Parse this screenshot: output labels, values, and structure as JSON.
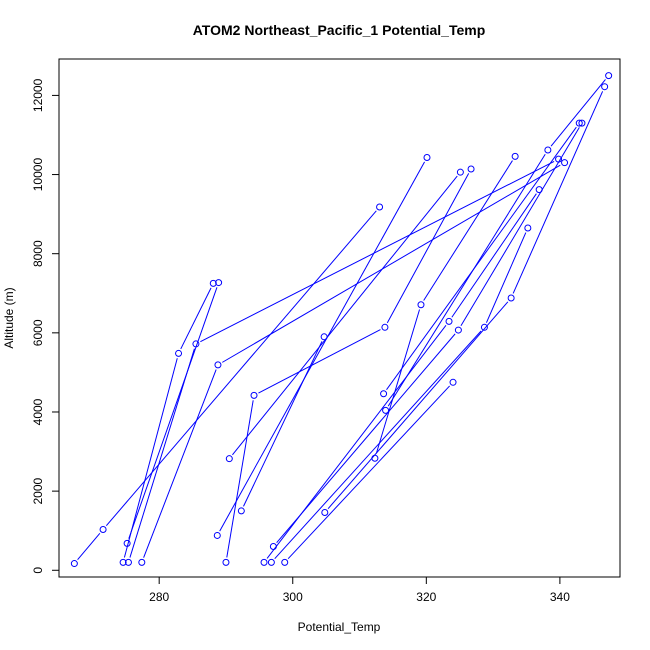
{
  "chart_data": {
    "type": "scatter",
    "title": "ATOM2 Northeast_Pacific_1 Potential_Temp",
    "xlabel": "Potential_Temp",
    "ylabel": "Altitude (m)",
    "xlim": [
      265,
      349
    ],
    "ylim": [
      -170,
      12920
    ],
    "x_ticks": [
      280,
      300,
      320,
      340
    ],
    "y_ticks": [
      0,
      2000,
      4000,
      6000,
      8000,
      10000,
      12000
    ],
    "series_color": "#0000ff",
    "grid": false,
    "legend": "none",
    "series": [
      {
        "name": "",
        "points": [
          [
            267.3,
            170
          ],
          [
            271.6,
            1030
          ],
          [
            313.0,
            9180
          ]
        ]
      },
      {
        "name": "",
        "points": [
          [
            274.6,
            200
          ],
          [
            282.9,
            5480
          ],
          [
            288.1,
            7250
          ]
        ]
      },
      {
        "name": "",
        "points": [
          [
            275.2,
            680
          ],
          [
            288.9,
            7270
          ]
        ]
      },
      {
        "name": "",
        "points": [
          [
            275.4,
            200
          ],
          [
            285.5,
            5720
          ],
          [
            339.8,
            10390
          ]
        ]
      },
      {
        "name": "",
        "points": [
          [
            277.4,
            200
          ],
          [
            288.8,
            5190
          ],
          [
            340.7,
            10300
          ]
        ]
      },
      {
        "name": "",
        "points": [
          [
            288.7,
            880
          ],
          [
            320.1,
            10430
          ]
        ]
      },
      {
        "name": "",
        "points": [
          [
            290.0,
            200
          ],
          [
            294.2,
            4420
          ],
          [
            313.8,
            6140
          ],
          [
            326.7,
            10140
          ]
        ]
      },
      {
        "name": "",
        "points": [
          [
            290.5,
            2820
          ],
          [
            325.1,
            10060
          ]
        ]
      },
      {
        "name": "",
        "points": [
          [
            292.3,
            1500
          ],
          [
            304.7,
            5900
          ]
        ]
      },
      {
        "name": "",
        "points": [
          [
            295.7,
            200
          ],
          [
            323.4,
            6290
          ],
          [
            336.9,
            9620
          ]
        ]
      },
      {
        "name": "",
        "points": [
          [
            296.8,
            200
          ],
          [
            328.7,
            6140
          ],
          [
            335.2,
            8650
          ]
        ]
      },
      {
        "name": "",
        "points": [
          [
            297.1,
            600
          ],
          [
            324.8,
            6070
          ],
          [
            343.3,
            11300
          ]
        ]
      },
      {
        "name": "",
        "points": [
          [
            298.8,
            200
          ],
          [
            324.0,
            4750
          ]
        ]
      },
      {
        "name": "",
        "points": [
          [
            304.8,
            1460
          ],
          [
            332.7,
            6880
          ],
          [
            346.7,
            12220
          ]
        ]
      },
      {
        "name": "",
        "points": [
          [
            312.3,
            2830
          ],
          [
            319.2,
            6710
          ],
          [
            333.3,
            10460
          ]
        ]
      },
      {
        "name": "",
        "points": [
          [
            313.6,
            4460
          ],
          [
            342.9,
            11300
          ]
        ]
      },
      {
        "name": "",
        "points": [
          [
            313.9,
            4040
          ],
          [
            338.2,
            10620
          ],
          [
            347.3,
            12500
          ]
        ]
      }
    ]
  }
}
